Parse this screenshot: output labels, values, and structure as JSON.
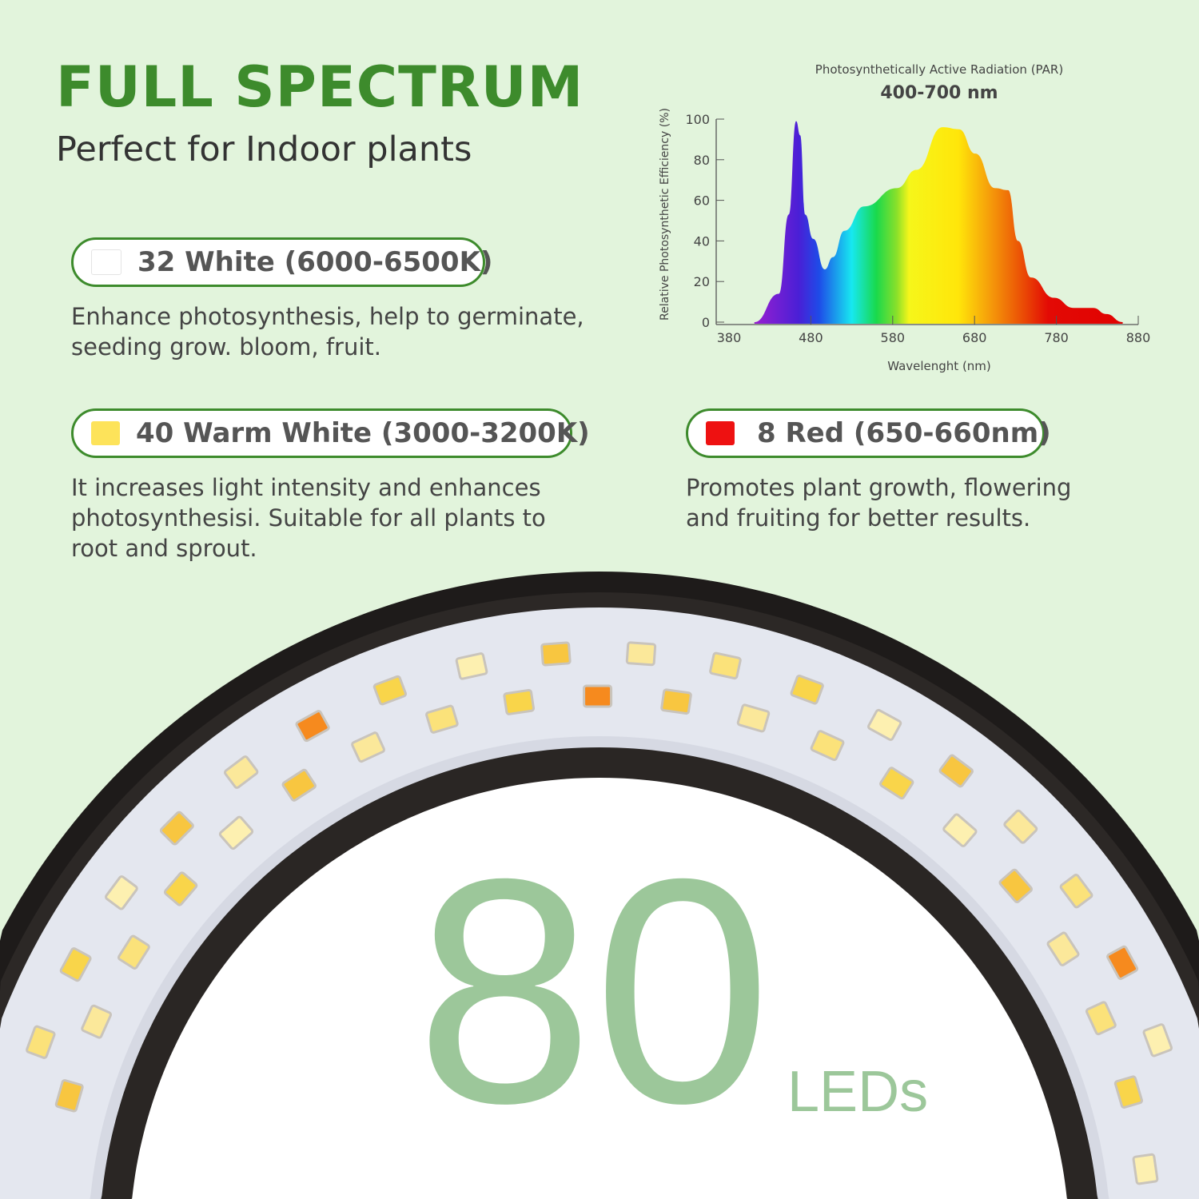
{
  "header": {
    "title": "FULL SPECTRUM",
    "subtitle": "Perfect for Indoor plants"
  },
  "features": [
    {
      "label": "32 White (6000-6500K)",
      "swatch_color": "#ffffff",
      "description": "Enhance photosynthesis, help to germinate, seeding grow. bloom, fruit."
    },
    {
      "label": "40 Warm White (3000-3200K)",
      "swatch_color": "#fde35a",
      "description": "It increases light intensity and enhances photosynthesisi. Suitable for all plants to root and sprout."
    },
    {
      "label": "8 Red (650-660nm)",
      "swatch_color": "#ee1111",
      "description": "Promotes plant growth, flowering and fruiting for better results."
    }
  ],
  "product": {
    "count": "80",
    "unit": "LEDs",
    "ring_color": "#1e1b1a",
    "band_color": "#e4e7ef"
  },
  "colors": {
    "accent": "#3d8b2c",
    "big_number": "#9cc79a",
    "background": "#e2f4dc"
  },
  "chart_data": {
    "type": "area",
    "title": "Photosynthetically Active Radiation (PAR)",
    "subtitle": "400-700 nm",
    "xlabel": "Wavelenght (nm)",
    "ylabel": "Relative Photosynthetic Efficiency (%)",
    "xlim": [
      380,
      880
    ],
    "ylim": [
      0,
      100
    ],
    "xticks": [
      380,
      480,
      580,
      680,
      780,
      880
    ],
    "yticks": [
      0,
      20,
      40,
      60,
      80,
      100
    ],
    "grid": false,
    "fill": "spectrum gradient",
    "x": [
      411,
      441,
      453,
      462,
      467,
      473,
      483,
      497,
      507,
      521,
      545,
      585,
      609,
      641,
      661,
      681,
      705,
      721,
      733,
      749,
      777,
      801,
      825,
      841,
      861
    ],
    "y": [
      0,
      14,
      53,
      99,
      92,
      53,
      41,
      26,
      32,
      45,
      57,
      66,
      75,
      96,
      95,
      83,
      66,
      65,
      40,
      22,
      12,
      7,
      7,
      4,
      0
    ]
  }
}
